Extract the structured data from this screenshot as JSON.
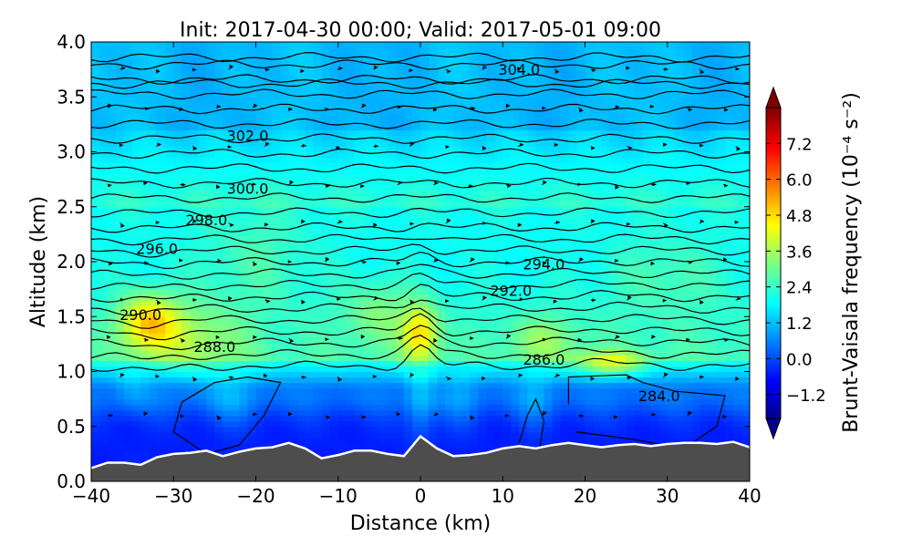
{
  "chart_data": {
    "type": "heatmap",
    "title": "Init: 2017-04-30 00:00; Valid: 2017-05-01 09:00",
    "xlabel": "Distance (km)",
    "ylabel": "Altitude (km)",
    "xlim": [
      -40,
      40
    ],
    "ylim": [
      0.0,
      4.0
    ],
    "x_ticks": [
      -40,
      -30,
      -20,
      -10,
      0,
      10,
      20,
      30,
      40
    ],
    "x_tick_labels": [
      "−40",
      "−30",
      "−20",
      "−10",
      "0",
      "10",
      "20",
      "30",
      "40"
    ],
    "y_ticks": [
      0.0,
      0.5,
      1.0,
      1.5,
      2.0,
      2.5,
      3.0,
      3.5,
      4.0
    ],
    "y_tick_labels": [
      "0.0",
      "0.5",
      "1.0",
      "1.5",
      "2.0",
      "2.5",
      "3.0",
      "3.5",
      "4.0"
    ],
    "colorbar": {
      "label": "Brunt-Vaisala frequency (10⁻⁴ s⁻²)",
      "range": [
        -2.0,
        8.4
      ],
      "ticks": [
        -1.2,
        0.0,
        1.2,
        2.4,
        3.6,
        4.8,
        6.0,
        7.2
      ],
      "tick_labels": [
        "−1.2",
        "0.0",
        "1.2",
        "2.4",
        "3.6",
        "4.8",
        "6.0",
        "7.2"
      ],
      "colormap": "jet",
      "extend": "both"
    },
    "contours": {
      "quantity": "potential temperature",
      "labels": [
        "284.0",
        "286.0",
        "288.0",
        "290.0",
        "292.0",
        "294.0",
        "296.0",
        "298.0",
        "300.0",
        "302.0",
        "304.0"
      ],
      "color": "#000000"
    },
    "terrain": {
      "color": "#4d4d4d",
      "x": [
        -40,
        -38,
        -36,
        -34,
        -32,
        -30,
        -28,
        -26,
        -24,
        -22,
        -20,
        -18,
        -16,
        -14,
        -12,
        -10,
        -8,
        -6,
        -4,
        -2,
        0,
        2,
        4,
        6,
        8,
        10,
        12,
        14,
        16,
        18,
        20,
        22,
        24,
        26,
        28,
        30,
        32,
        34,
        36,
        38,
        40
      ],
      "height_km": [
        0.12,
        0.17,
        0.17,
        0.15,
        0.22,
        0.25,
        0.26,
        0.28,
        0.23,
        0.27,
        0.3,
        0.31,
        0.35,
        0.3,
        0.21,
        0.24,
        0.28,
        0.28,
        0.25,
        0.23,
        0.41,
        0.3,
        0.23,
        0.24,
        0.26,
        0.3,
        0.32,
        0.3,
        0.33,
        0.35,
        0.33,
        0.31,
        0.33,
        0.34,
        0.32,
        0.34,
        0.35,
        0.35,
        0.34,
        0.36,
        0.31
      ]
    }
  }
}
